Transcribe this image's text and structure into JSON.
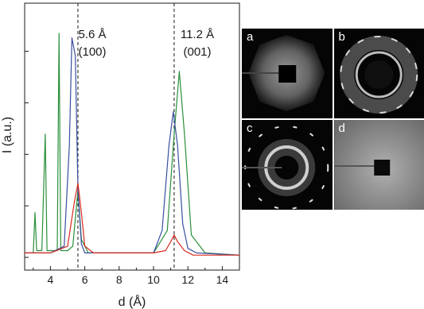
{
  "chart_data": {
    "type": "line",
    "xlabel": "d (Å)",
    "ylabel": "I (a.u.)",
    "xlim": [
      2.5,
      15
    ],
    "xticks": [
      4,
      6,
      8,
      10,
      12,
      14
    ],
    "grid": false,
    "reference_lines": [
      {
        "x": 5.6,
        "label_line1": "5.6 Å",
        "label_line2": "(100)"
      },
      {
        "x": 11.2,
        "label_line1": "11.2 Å",
        "label_line2": "(001)"
      }
    ],
    "series": [
      {
        "color": "#2a8f3a",
        "x": [
          2.5,
          3.0,
          3.1,
          3.2,
          3.5,
          3.7,
          3.8,
          4.0,
          4.4,
          4.5,
          4.6,
          5.0,
          5.3,
          5.6,
          5.8,
          6.2,
          8,
          10,
          10.8,
          11.2,
          11.5,
          11.8,
          12.2,
          13,
          15
        ],
        "y": [
          0.02,
          0.02,
          0.2,
          0.03,
          0.03,
          0.55,
          0.03,
          0.03,
          0.03,
          1.0,
          0.03,
          0.03,
          0.05,
          0.3,
          0.08,
          0.02,
          0.02,
          0.02,
          0.12,
          0.55,
          0.83,
          0.55,
          0.1,
          0.02,
          0.01
        ]
      },
      {
        "color": "#3a4fa0",
        "x": [
          2.5,
          4.0,
          4.8,
          5.1,
          5.25,
          5.45,
          5.6,
          5.8,
          6.0,
          6.5,
          8,
          10,
          10.5,
          10.9,
          11.15,
          11.4,
          11.7,
          12.0,
          12.5,
          15
        ],
        "y": [
          0.02,
          0.02,
          0.05,
          0.5,
          0.98,
          0.9,
          0.3,
          0.06,
          0.02,
          0.02,
          0.02,
          0.02,
          0.12,
          0.5,
          0.65,
          0.5,
          0.15,
          0.04,
          0.02,
          0.01
        ]
      },
      {
        "color": "#d62a1e",
        "x": [
          2.5,
          4.0,
          5.0,
          5.4,
          5.6,
          5.8,
          6.0,
          6.5,
          8,
          10,
          10.7,
          11.0,
          11.2,
          11.4,
          11.8,
          12.3,
          13,
          15
        ],
        "y": [
          0.02,
          0.02,
          0.05,
          0.25,
          0.33,
          0.2,
          0.05,
          0.02,
          0.02,
          0.02,
          0.03,
          0.07,
          0.1,
          0.07,
          0.03,
          0.01,
          0.01,
          0.01
        ]
      }
    ]
  },
  "panels": [
    {
      "label": "a"
    },
    {
      "label": "b"
    },
    {
      "label": "c"
    },
    {
      "label": "d"
    }
  ]
}
